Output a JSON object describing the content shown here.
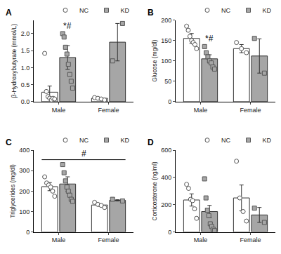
{
  "chart_data": [
    {
      "type": "bar",
      "title": "A",
      "ylabel": "β-Hydroxybutyrate (mmol/L)",
      "categories": [
        "Male",
        "Female"
      ],
      "ylim": [
        0,
        2.4
      ],
      "yticks": [
        {
          "value": 0,
          "label": "0.0"
        },
        {
          "value": 0.5,
          "label": "0.5"
        },
        {
          "value": 1,
          "label": "1.0"
        },
        {
          "value": 1.5,
          "label": "1.5"
        },
        {
          "value": 2,
          "label": "2.0"
        }
      ],
      "grid": false,
      "legend": "top right",
      "series": [
        {
          "name": "NC",
          "color": "#ffffff",
          "marker": "circle",
          "values": [
            0.28,
            0.1
          ],
          "error": [
            0.18,
            0.03
          ],
          "points": [
            [
              1.42,
              0.3,
              0.15,
              0.1,
              0.05,
              0.1,
              0.08
            ],
            [
              0.12,
              0.1,
              0.08,
              0.05
            ]
          ]
        },
        {
          "name": "KD",
          "color": "#a6a6a6",
          "marker": "square",
          "values": [
            1.3,
            1.75
          ],
          "error": [
            0.35,
            0.55
          ],
          "points": [
            [
              2.0,
              1.9,
              1.6,
              1.4,
              1.1,
              0.8,
              0.6,
              0.4
            ],
            [
              1.2,
              2.3
            ]
          ]
        }
      ],
      "annotations": [
        {
          "text": "*#",
          "category": "Male",
          "series": "KD"
        }
      ]
    },
    {
      "type": "bar",
      "title": "B",
      "ylabel": "Glucose (mg/dl)",
      "categories": [
        "Male",
        "Female"
      ],
      "ylim": [
        0,
        200
      ],
      "yticks": [
        0,
        50,
        100,
        150,
        200
      ],
      "grid": false,
      "legend": "top right",
      "series": [
        {
          "name": "NC",
          "color": "#ffffff",
          "marker": "circle",
          "values": [
            155,
            130
          ],
          "error": [
            12,
            10
          ],
          "points": [
            [
              185,
              175,
              160,
              150,
              145,
              140,
              130
            ],
            [
              145,
              130,
              120
            ]
          ]
        },
        {
          "name": "KD",
          "color": "#a6a6a6",
          "marker": "square",
          "values": [
            105,
            112
          ],
          "error": [
            10,
            42
          ],
          "points": [
            [
              135,
              120,
              110,
              100,
              95,
              85,
              80
            ],
            [
              155,
              70
            ]
          ]
        }
      ],
      "annotations": [
        {
          "text": "*#",
          "category": "Male",
          "series": "KD"
        }
      ]
    },
    {
      "type": "bar",
      "title": "C",
      "ylabel": "Triglycerides (mg/dl)",
      "categories": [
        "Male",
        "Female"
      ],
      "ylim": [
        0,
        400
      ],
      "yticks": [
        0,
        100,
        200,
        300,
        400
      ],
      "grid": false,
      "legend": "top right",
      "series": [
        {
          "name": "NC",
          "color": "#ffffff",
          "marker": "circle",
          "values": [
            222,
            132
          ],
          "error": [
            20,
            6
          ],
          "points": [
            [
              270,
              240,
              230,
              220,
              200,
              175
            ],
            [
              145,
              135,
              130,
              120
            ]
          ]
        },
        {
          "name": "KD",
          "color": "#a6a6a6",
          "marker": "square",
          "values": [
            235,
            155
          ],
          "error": [
            35,
            3
          ],
          "points": [
            [
              330,
              290,
              250,
              220,
              200,
              180,
              160,
              150
            ],
            [
              160,
              152
            ]
          ]
        }
      ],
      "annotations": [
        {
          "text": "#",
          "categories": [
            "Male",
            "Female"
          ]
        }
      ]
    },
    {
      "type": "bar",
      "title": "D",
      "ylabel": "Corticosterone (ng/ml)",
      "categories": [
        "Male",
        "Female"
      ],
      "ylim": [
        0,
        600
      ],
      "yticks": [
        0,
        200,
        400,
        600
      ],
      "grid": false,
      "legend": "top right",
      "series": [
        {
          "name": "NC",
          "color": "#ffffff",
          "marker": "circle",
          "values": [
            235,
            250
          ],
          "error": [
            45,
            95
          ],
          "points": [
            [
              350,
              320,
              240,
              230,
              170,
              100
            ],
            [
              520,
              250,
              150,
              80
            ]
          ]
        },
        {
          "name": "KD",
          "color": "#a6a6a6",
          "marker": "square",
          "values": [
            150,
            125
          ],
          "error": [
            45,
            55
          ],
          "points": [
            [
              390,
              250,
              160,
              120,
              60,
              40,
              20,
              10
            ],
            [
              175,
              70
            ]
          ]
        }
      ]
    }
  ]
}
